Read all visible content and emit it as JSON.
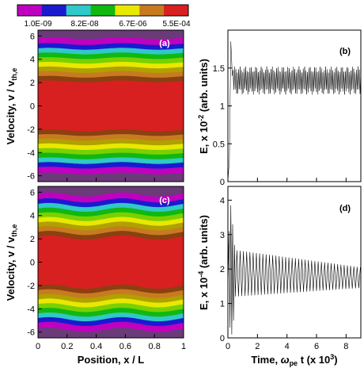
{
  "colorbar": {
    "labels": [
      "1.0E-09",
      "8.2E-08",
      "6.7E-06",
      "5.5E-04"
    ],
    "colors": [
      "#c000c0",
      "#1a1ad0",
      "#30c8c8",
      "#10b810",
      "#e8e800",
      "#c87a20",
      "#d82020"
    ]
  },
  "chart_data": [
    {
      "panel": "(a)",
      "type": "heatmap",
      "x_range": [
        0,
        1
      ],
      "y_range": [
        -6.5,
        6.5
      ],
      "xticks": [
        "0",
        "0.2",
        "0.4",
        "0.6",
        "0.8",
        "1"
      ],
      "yticks": [
        "6",
        "4",
        "2",
        "0",
        "-2",
        "-4",
        "-6"
      ],
      "xlabel": "Position, x / L",
      "ylabel": "Velocity, v / v",
      "ylabel_sub": "th,e",
      "description_levels": "log-scale color levels from 1.0E-09 to 5.5E-04, Maxwellian-like distribution peaked at v=0 with weak sinusoidal modulation in x",
      "band_edges_v": [
        5.8,
        5.3,
        4.9,
        4.5,
        4.1,
        3.7,
        3.3,
        2.9,
        2.5,
        2.1,
        1.5
      ],
      "modulation_amplitude": 0.08
    },
    {
      "panel": "(b)",
      "type": "line",
      "x_range": [
        0,
        9
      ],
      "y_range": [
        0,
        2.0
      ],
      "xticks": [
        "0",
        "2",
        "4",
        "6",
        "8"
      ],
      "yticks": [
        "0",
        "0.5",
        "1",
        "1.5"
      ],
      "ylabel": "E, x 10",
      "ylabel_sup": "-2",
      "ylabel_tail": " (arb. units)",
      "series": [
        {
          "initial_peak": 1.85,
          "mean": 1.35,
          "oscillation_max": 1.52,
          "oscillation_min": 1.15,
          "period": 0.095
        }
      ]
    },
    {
      "panel": "(c)",
      "type": "heatmap",
      "x_range": [
        0,
        1
      ],
      "y_range": [
        -6.5,
        6.5
      ],
      "xticks": [
        "0",
        "0.2",
        "0.4",
        "0.6",
        "0.8",
        "1"
      ],
      "yticks": [
        "6",
        "4",
        "2",
        "0",
        "-2",
        "-4",
        "-6"
      ],
      "xlabel": "Position, x / L",
      "ylabel": "Velocity, v / v",
      "ylabel_sub": "th,e",
      "band_edges_v": [
        5.8,
        5.3,
        4.9,
        4.5,
        4.1,
        3.7,
        3.3,
        2.9,
        2.5,
        2.1,
        1.5
      ],
      "modulation_amplitude": 0.18
    },
    {
      "panel": "(d)",
      "type": "line",
      "x_range": [
        0,
        9
      ],
      "y_range": [
        0,
        4.4
      ],
      "xticks": [
        "0",
        "2",
        "4",
        "6",
        "8"
      ],
      "yticks": [
        "0",
        "1",
        "2",
        "3",
        "4"
      ],
      "xlabel": "Time, ",
      "xlabel_sym": "ω",
      "xlabel_sub": "pe",
      "xlabel_tail": " t (x 10",
      "xlabel_sup": "3",
      "xlabel_end": ")",
      "ylabel": "E, x 10",
      "ylabel_sup": "-4",
      "ylabel_tail": " (arb. units)",
      "series": [
        {
          "initial_peak": 3.85,
          "envelope_start": [
            0.5,
            2.55
          ],
          "envelope_end": [
            9.0,
            2.05
          ],
          "lower_start": 1.2,
          "lower_end": 1.45,
          "period": 0.22
        }
      ]
    }
  ]
}
